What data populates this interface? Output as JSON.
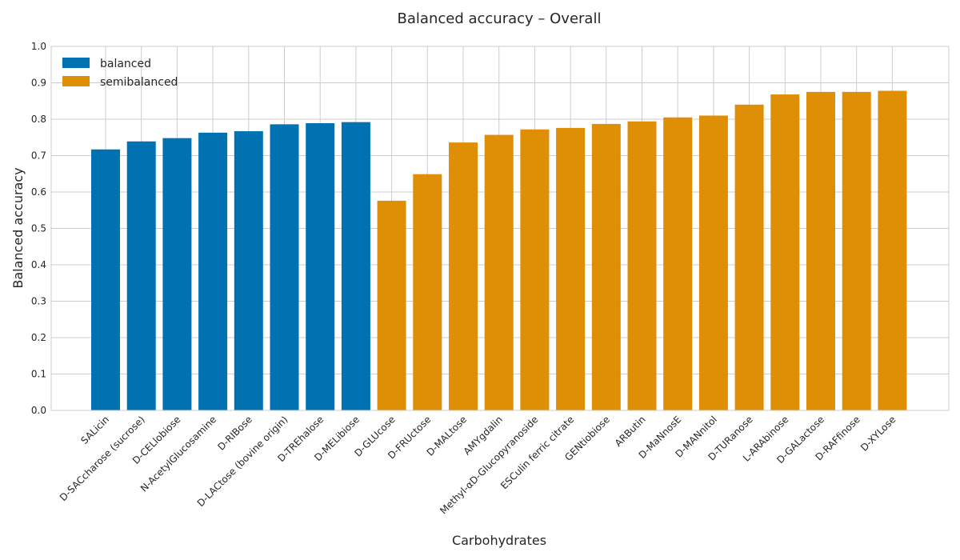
{
  "chart_data": {
    "type": "bar",
    "title": "Balanced accuracy – Overall",
    "xlabel": "Carbohydrates",
    "ylabel": "Balanced accuracy",
    "ylim": [
      0,
      1.0
    ],
    "yticks": [
      "0.0",
      "0.1",
      "0.2",
      "0.3",
      "0.4",
      "0.5",
      "0.6",
      "0.7",
      "0.8",
      "0.9",
      "1.0"
    ],
    "grid": true,
    "legend_position": "top-left",
    "categories": [
      "SALicin",
      "D-SACcharose (sucrose)",
      "D-CELlobiose",
      "N-AcetylGlucosamine",
      "D-RIBose",
      "D-LACtose (bovine origin)",
      "D-TREhalose",
      "D-MELibiose",
      "D-GLUcose",
      "D-FRUctose",
      "D-MALtose",
      "AMYgdalin",
      "Methyl-αD-Glucopyranoside",
      "ESCulin ferric citrate",
      "GENtiobiose",
      "ARButin",
      "D-MaNnosE",
      "D-MANnitol",
      "D-TURanose",
      "L-ARAbinose",
      "D-GALactose",
      "D-RAFfinose",
      "D-XYLose"
    ],
    "values": [
      0.717,
      0.739,
      0.748,
      0.763,
      0.767,
      0.786,
      0.789,
      0.792,
      0.576,
      0.649,
      0.736,
      0.757,
      0.772,
      0.776,
      0.787,
      0.794,
      0.805,
      0.81,
      0.84,
      0.868,
      0.875,
      0.875,
      0.878
    ],
    "groups": [
      "balanced",
      "balanced",
      "balanced",
      "balanced",
      "balanced",
      "balanced",
      "balanced",
      "balanced",
      "semibalanced",
      "semibalanced",
      "semibalanced",
      "semibalanced",
      "semibalanced",
      "semibalanced",
      "semibalanced",
      "semibalanced",
      "semibalanced",
      "semibalanced",
      "semibalanced",
      "semibalanced",
      "semibalanced",
      "semibalanced",
      "semibalanced"
    ],
    "series": [
      {
        "name": "balanced",
        "color": "#0072b2"
      },
      {
        "name": "semibalanced",
        "color": "#de8f05"
      }
    ]
  }
}
